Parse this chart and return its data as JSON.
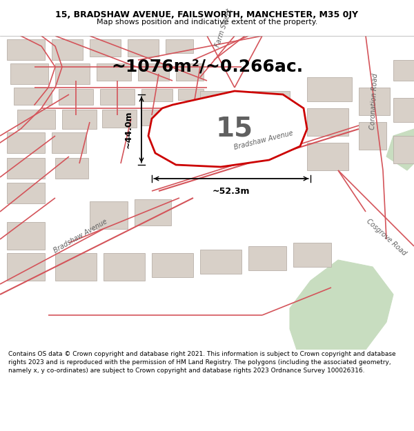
{
  "title_line1": "15, BRADSHAW AVENUE, FAILSWORTH, MANCHESTER, M35 0JY",
  "title_line2": "Map shows position and indicative extent of the property.",
  "area_text": "~1076m²/~0.266ac.",
  "label_number": "15",
  "dim_horizontal": "~52.3m",
  "dim_vertical": "~44.0m",
  "footer_text": "Contains OS data © Crown copyright and database right 2021. This information is subject to Crown copyright and database rights 2023 and is reproduced with the permission of HM Land Registry. The polygons (including the associated geometry, namely x, y co-ordinates) are subject to Crown copyright and database rights 2023 Ordnance Survey 100026316.",
  "bg_map_color": "#f2ede8",
  "plot_fill_color": "#ffffff",
  "plot_edge_color": "#cc0000",
  "road_color": "#d4545a",
  "building_fill": "#d8d0c8",
  "building_edge": "#b8b0a8",
  "green_area_color": "#c8ddc0",
  "fig_width": 6.0,
  "fig_height": 6.25,
  "title_fontsize": 9.0,
  "subtitle_fontsize": 8.0,
  "area_fontsize": 18,
  "number_fontsize": 28,
  "footer_fontsize": 6.5
}
